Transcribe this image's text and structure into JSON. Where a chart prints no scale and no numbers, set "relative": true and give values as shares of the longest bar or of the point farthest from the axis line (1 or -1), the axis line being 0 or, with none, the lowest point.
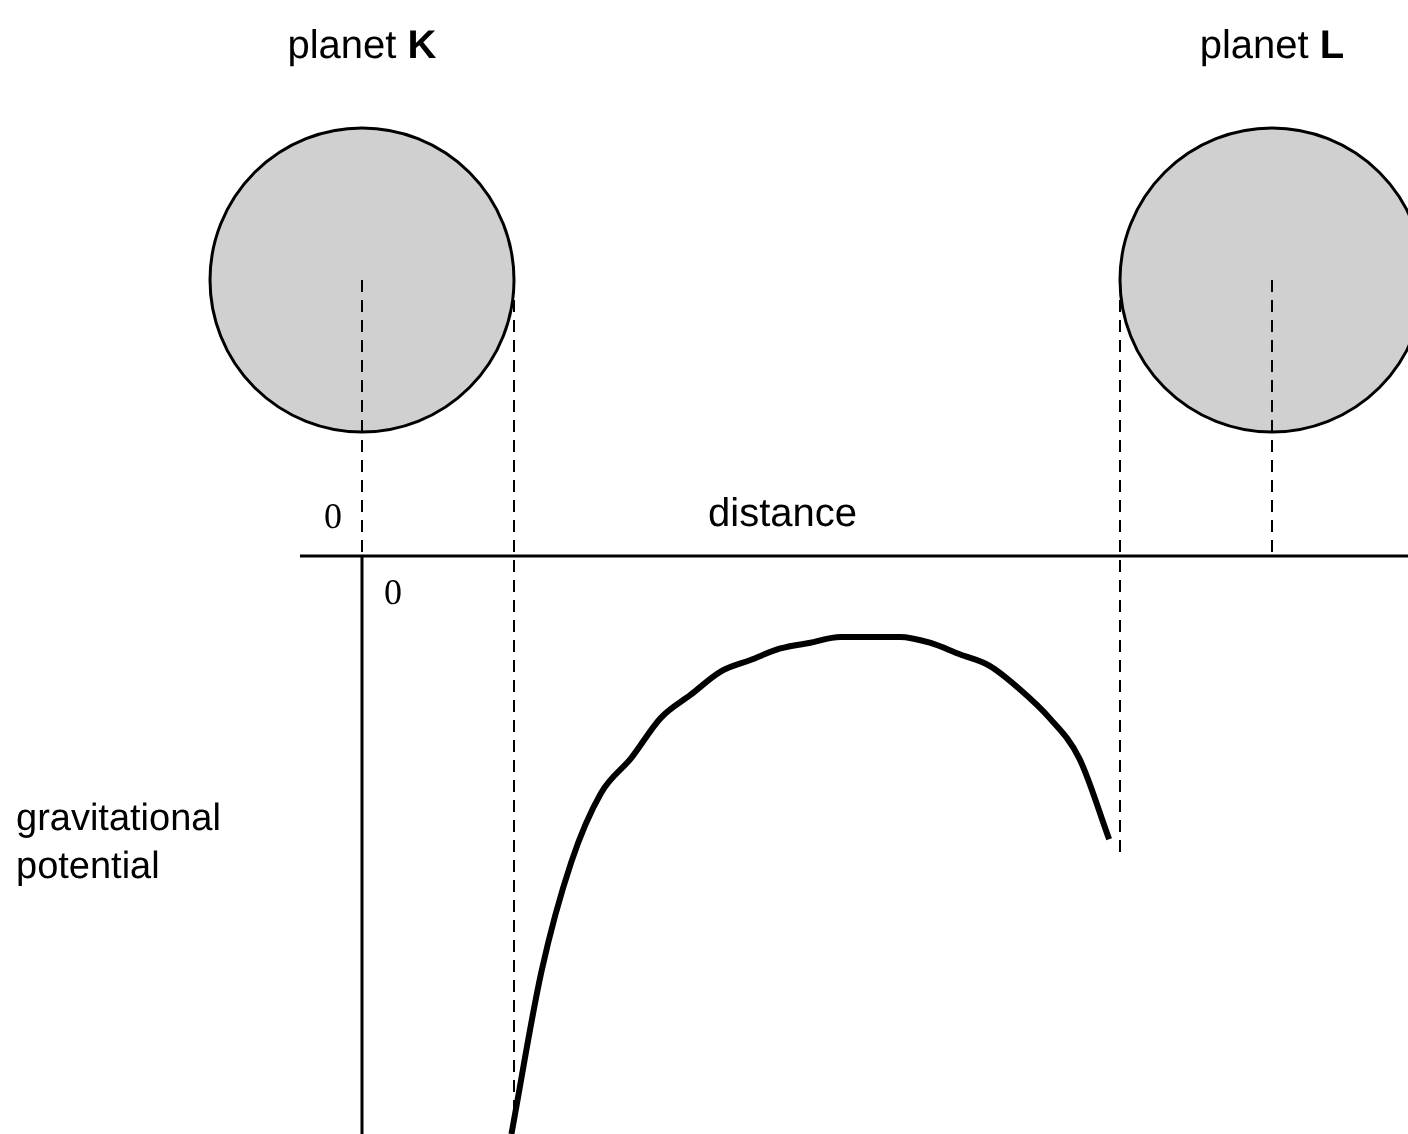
{
  "chart_data": {
    "type": "line",
    "relative": true,
    "xlabel": "distance",
    "ylabel": "gravitational potential",
    "legend": false,
    "marker": "none",
    "categories": [
      null,
      null,
      null,
      null,
      null,
      null,
      null,
      null,
      null,
      null,
      null,
      null,
      null,
      null,
      null,
      null,
      null,
      null,
      null,
      null,
      null,
      null,
      null,
      null,
      null,
      null,
      null,
      null,
      null,
      null,
      null,
      null,
      null,
      null,
      null,
      null
    ],
    "series": [
      {
        "color": "#000000",
        "values": [
          null,
          null,
          null,
          null,
          null,
          -1,
          -0.72,
          -0.53,
          -0.41,
          -0.35,
          -0.28,
          -0.24,
          -0.2,
          -0.18,
          -0.16,
          -0.15,
          -0.14,
          -0.14,
          -0.14,
          -0.15,
          -0.17,
          -0.19,
          -0.23,
          -0.28,
          -0.35,
          -0.49,
          null,
          null,
          null,
          null,
          null,
          null,
          null,
          null,
          null,
          null
        ]
      }
    ],
    "annotations": [
      "planet K",
      "planet L",
      "0",
      "0"
    ]
  }
}
